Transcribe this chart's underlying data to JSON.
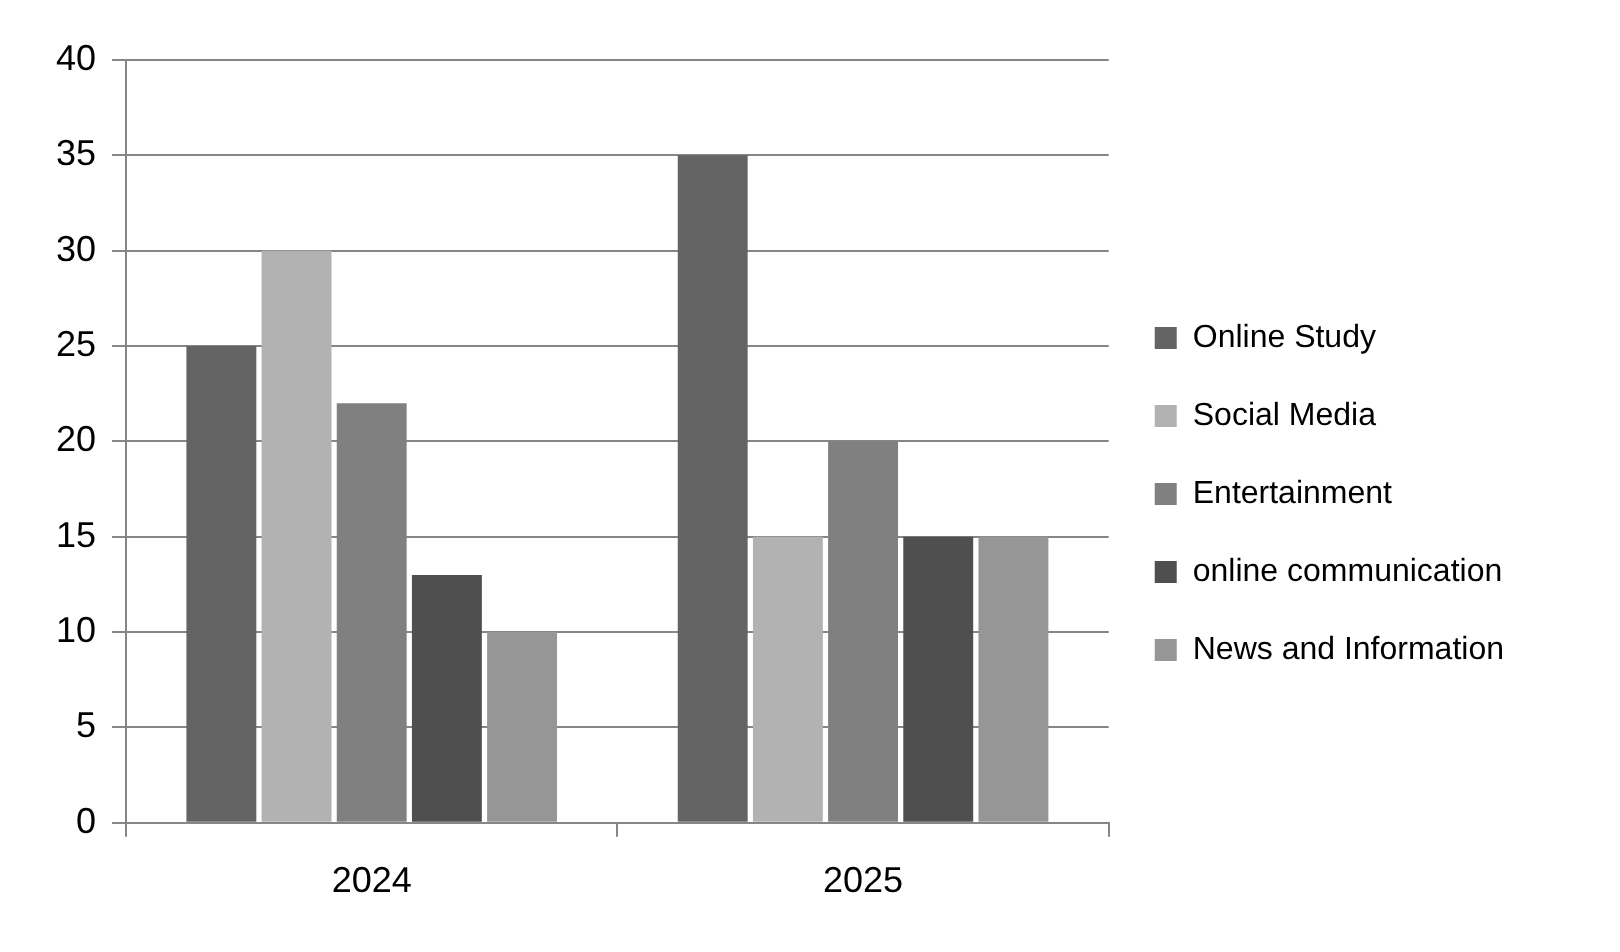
{
  "chart_data": {
    "type": "bar",
    "categories": [
      "2024",
      "2025"
    ],
    "series": [
      {
        "name": "Online Study",
        "color": "#646464",
        "values": [
          25,
          35
        ]
      },
      {
        "name": "Social Media",
        "color": "#b2b2b2",
        "values": [
          30,
          15
        ]
      },
      {
        "name": "Entertainment",
        "color": "#808080",
        "values": [
          22,
          20
        ]
      },
      {
        "name": "online communication",
        "color": "#4f4f4f",
        "values": [
          13,
          15
        ]
      },
      {
        "name": "News and Information",
        "color": "#969696",
        "values": [
          10,
          15
        ]
      }
    ],
    "ylim": [
      0,
      40
    ],
    "yticks": [
      0,
      5,
      10,
      15,
      20,
      25,
      30,
      35,
      40
    ],
    "grid": "y",
    "legend": "right"
  }
}
